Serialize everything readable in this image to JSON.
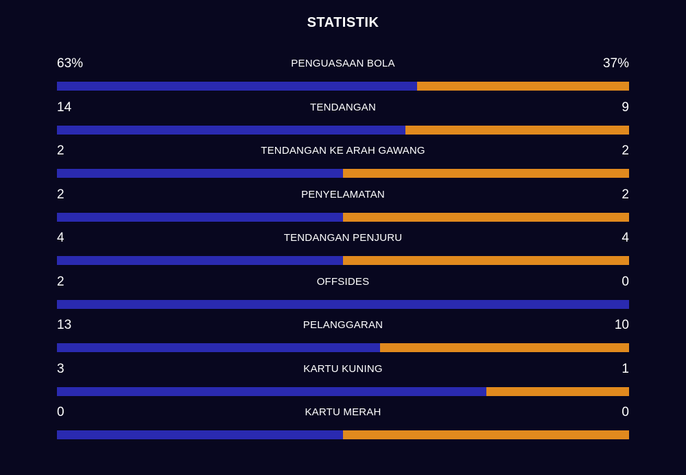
{
  "title": "STATISTIK",
  "colors": {
    "background": "#08071f",
    "home": "#2a2ab0",
    "away": "#e18a1e"
  },
  "stats": [
    {
      "label": "PENGUASAAN BOLA",
      "home": "63%",
      "away": "37%",
      "home_share": 0.63
    },
    {
      "label": "TENDANGAN",
      "home": "14",
      "away": "9",
      "home_share": 0.6087
    },
    {
      "label": "TENDANGAN KE ARAH GAWANG",
      "home": "2",
      "away": "2",
      "home_share": 0.5
    },
    {
      "label": "PENYELAMATAN",
      "home": "2",
      "away": "2",
      "home_share": 0.5
    },
    {
      "label": "TENDANGAN PENJURU",
      "home": "4",
      "away": "4",
      "home_share": 0.5
    },
    {
      "label": "OFFSIDES",
      "home": "2",
      "away": "0",
      "home_share": 1.0
    },
    {
      "label": "PELANGGARAN",
      "home": "13",
      "away": "10",
      "home_share": 0.5652
    },
    {
      "label": "KARTU KUNING",
      "home": "3",
      "away": "1",
      "home_share": 0.75
    },
    {
      "label": "KARTU MERAH",
      "home": "0",
      "away": "0",
      "home_share": 0.5
    }
  ]
}
